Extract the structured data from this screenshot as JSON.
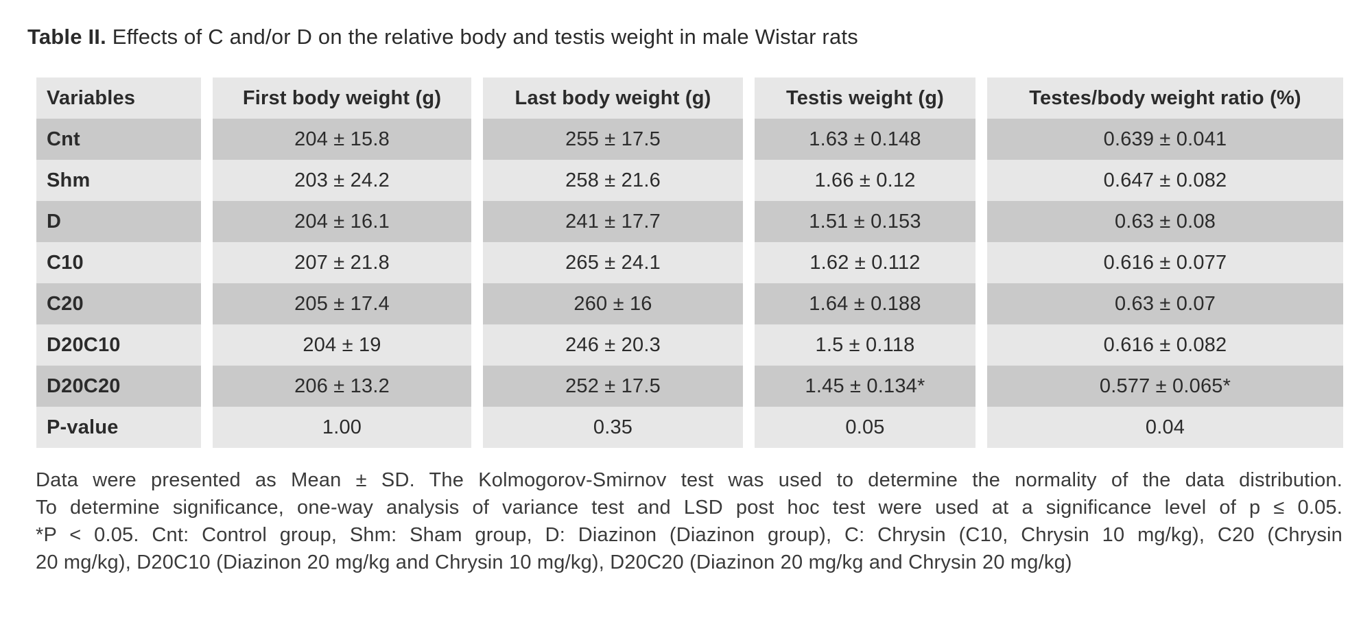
{
  "caption": {
    "label": "Table II.",
    "text": "Effects of C and/or D on the relative body and testis weight in male Wistar rats"
  },
  "table": {
    "columns": [
      "Variables",
      "First body weight (g)",
      "Last body weight (g)",
      "Testis weight (g)",
      "Testes/body weight ratio (%)"
    ],
    "rows": [
      {
        "variable": "Cnt",
        "values": [
          "204 ± 15.8",
          "255 ± 17.5",
          "1.63 ± 0.148",
          "0.639 ± 0.041"
        ]
      },
      {
        "variable": "Shm",
        "values": [
          "203 ± 24.2",
          "258 ± 21.6",
          "1.66 ± 0.12",
          "0.647 ± 0.082"
        ]
      },
      {
        "variable": "D",
        "values": [
          "204 ± 16.1",
          "241 ± 17.7",
          "1.51 ± 0.153",
          "0.63 ± 0.08"
        ]
      },
      {
        "variable": "C10",
        "values": [
          "207 ± 21.8",
          "265 ± 24.1",
          "1.62 ± 0.112",
          "0.616 ± 0.077"
        ]
      },
      {
        "variable": "C20",
        "values": [
          "205 ± 17.4",
          "260 ± 16",
          "1.64 ± 0.188",
          "0.63 ± 0.07"
        ]
      },
      {
        "variable": "D20C10",
        "values": [
          "204 ± 19",
          "246 ± 20.3",
          "1.5 ± 0.118",
          "0.616 ± 0.082"
        ]
      },
      {
        "variable": "D20C20",
        "values": [
          "206 ± 13.2",
          "252 ± 17.5",
          "1.45 ± 0.134*",
          "0.577 ± 0.065*"
        ]
      },
      {
        "variable": "P-value",
        "values": [
          "1.00",
          "0.35",
          "0.05",
          "0.04"
        ]
      }
    ]
  },
  "footnote": {
    "lines": [
      "Data were presented as Mean ± SD. The Kolmogorov-Smirnov test was used to determine the normality of the data distribution.",
      "To determine significance, one-way analysis of variance test and LSD post hoc test were used at a significance level of p ≤ 0.05.",
      "*P < 0.05. Cnt: Control group, Shm: Sham group, D: Diazinon (Diazinon group), C: Chrysin (C10, Chrysin 10 mg/kg), C20 (Chrysin",
      "20 mg/kg), D20C10 (Diazinon 20 mg/kg and Chrysin 10 mg/kg), D20C20 (Diazinon 20 mg/kg and Chrysin 20 mg/kg)"
    ]
  },
  "colors": {
    "row_light": "#e7e7e7",
    "row_dark": "#c9c9c9",
    "table_text": "#2b2b2b",
    "footnote_text": "#3a3a3a",
    "background": "#ffffff"
  }
}
